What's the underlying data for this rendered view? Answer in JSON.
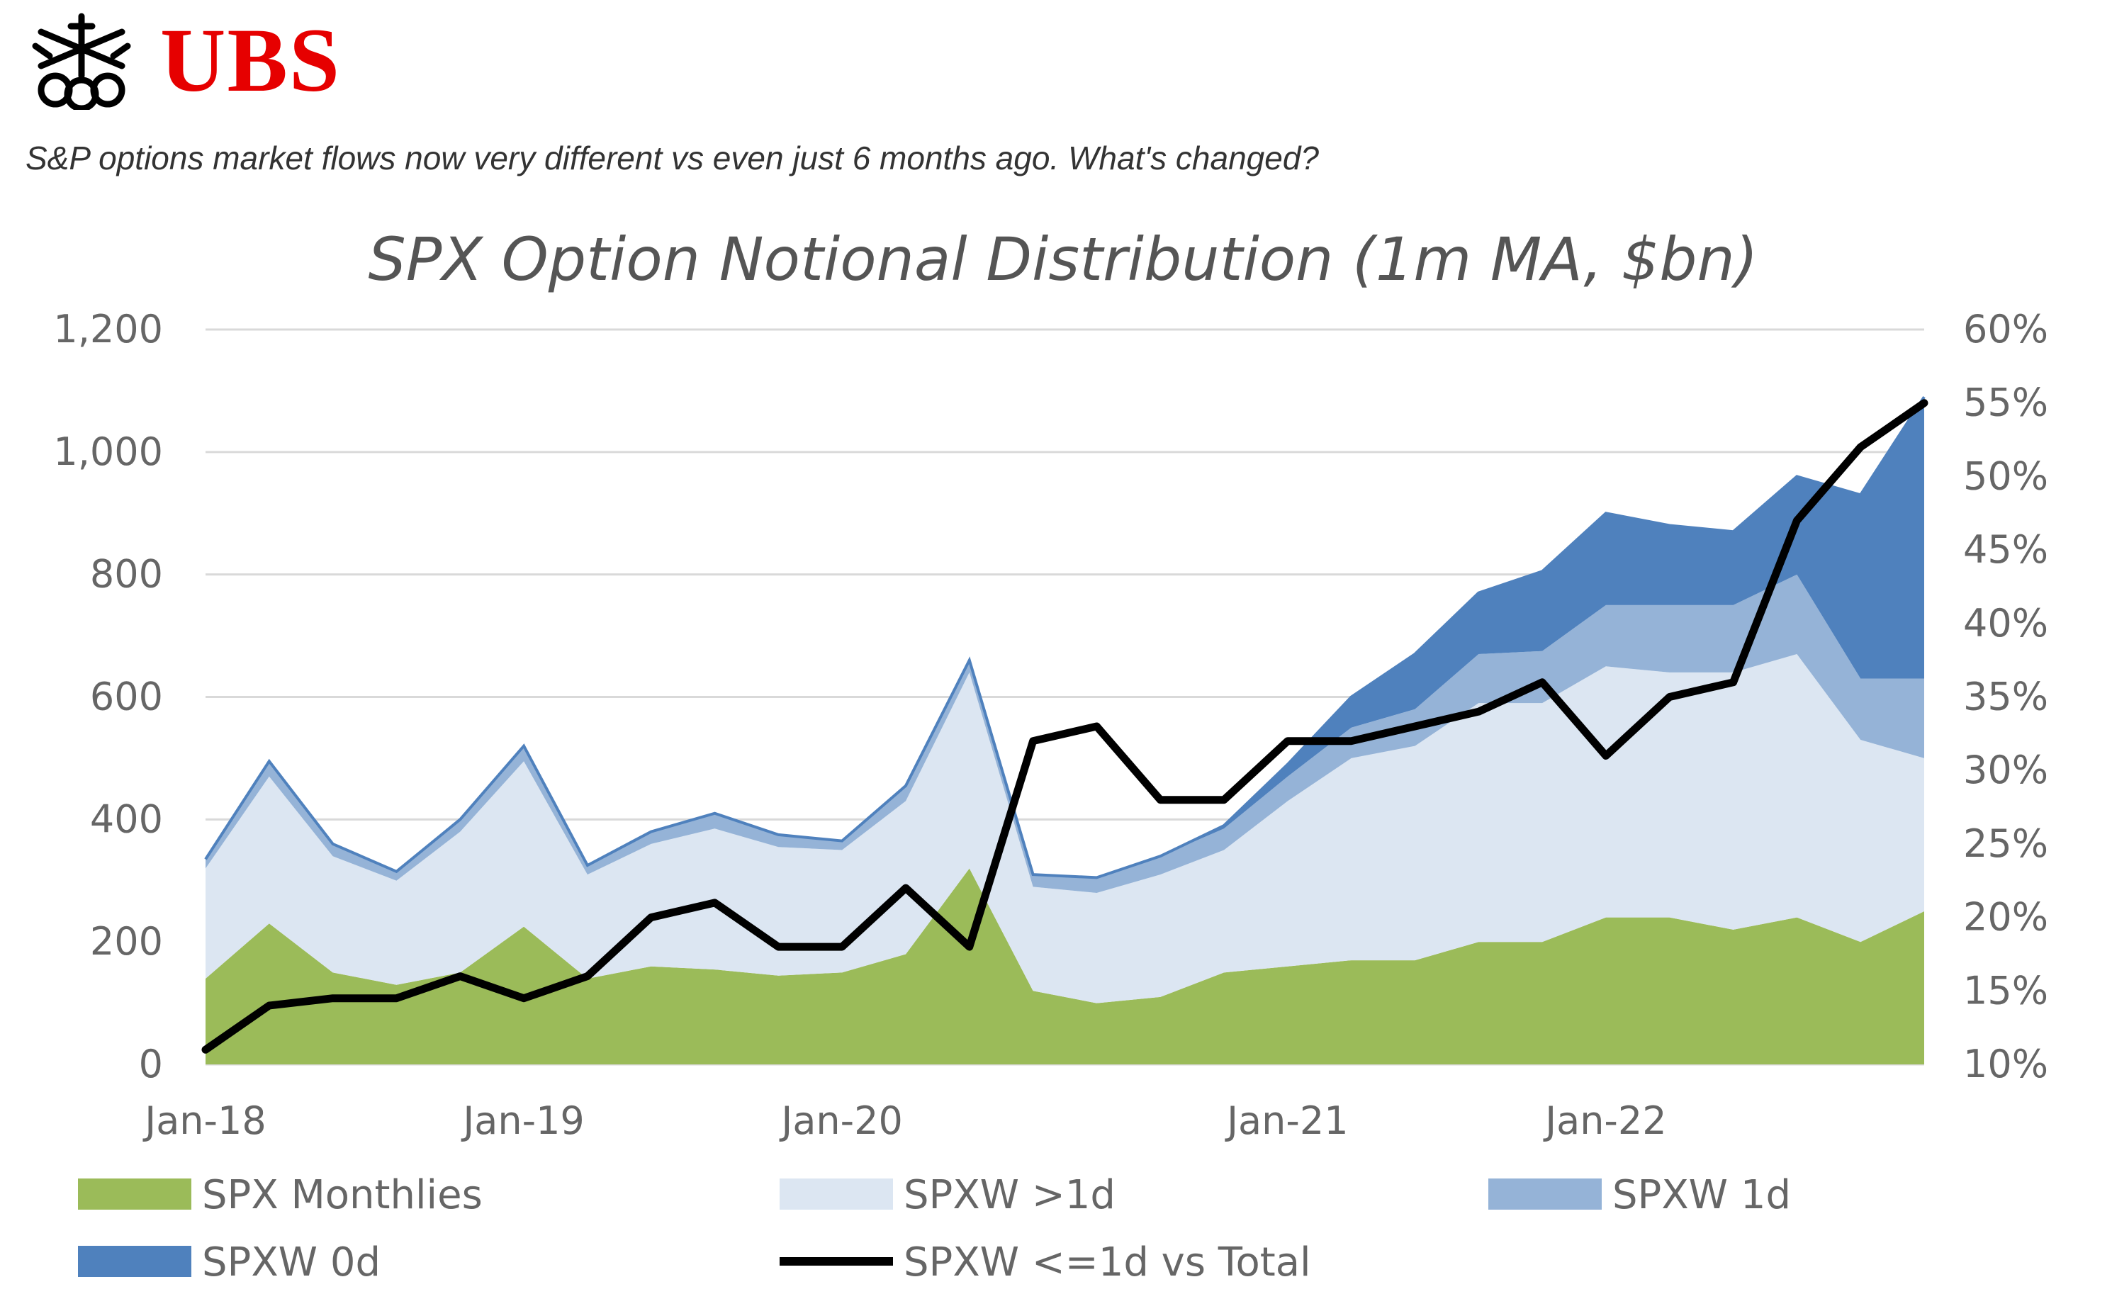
{
  "brand": {
    "name": "UBS",
    "icon": "ubs-keys-logo",
    "color": "#e60000"
  },
  "subtitle": "S&P options market flows now very different vs even just 6 months ago. What's changed?",
  "chart_data": {
    "type": "area",
    "title": "SPX Option Notional Distribution (1m MA, $bn)",
    "xlabel": "",
    "ylabel": "",
    "x_ticks": [
      "Jan-18",
      "Jan-19",
      "Jan-20",
      "Jan-21",
      "Jan-22"
    ],
    "y_left": {
      "ticks": [
        "0",
        "200",
        "400",
        "600",
        "800",
        "1,000",
        "1,200"
      ],
      "range": [
        0,
        1200
      ]
    },
    "y_right": {
      "ticks": [
        "10%",
        "15%",
        "20%",
        "25%",
        "30%",
        "35%",
        "40%",
        "45%",
        "50%",
        "55%",
        "60%"
      ],
      "range": [
        10,
        60
      ]
    },
    "grid": "horizontal",
    "legend": "bottom",
    "x": [
      "Jan-18",
      "Mar-18",
      "Jun-18",
      "Sep-18",
      "Nov-18",
      "Jan-19",
      "Mar-19",
      "Jun-19",
      "Sep-19",
      "Nov-19",
      "Jan-20",
      "Feb-20",
      "Mar-20",
      "Apr-20",
      "Jun-20",
      "Aug-20",
      "Oct-20",
      "Jan-21",
      "Apr-21",
      "Jul-21",
      "Sep-21",
      "Oct-21",
      "Jan-22",
      "Apr-22",
      "Jun-22",
      "Aug-22",
      "Oct-22",
      "Nov-22"
    ],
    "series": [
      {
        "name": "SPX Monthlies",
        "kind": "area",
        "axis": "left",
        "color": "#9bbb59",
        "values": [
          140,
          230,
          150,
          130,
          150,
          225,
          140,
          160,
          155,
          145,
          150,
          180,
          320,
          120,
          100,
          110,
          150,
          160,
          170,
          170,
          200,
          200,
          240,
          240,
          220,
          240,
          200,
          250
        ]
      },
      {
        "name": "SPXW >1d",
        "kind": "area",
        "axis": "left",
        "color": "#dce6f2",
        "values": [
          180,
          240,
          190,
          170,
          230,
          270,
          170,
          200,
          230,
          210,
          200,
          250,
          320,
          170,
          180,
          200,
          200,
          270,
          330,
          350,
          390,
          390,
          410,
          400,
          420,
          430,
          330,
          250
        ]
      },
      {
        "name": "SPXW 1d",
        "kind": "area",
        "axis": "left",
        "color": "#95b3d7",
        "values": [
          15,
          25,
          20,
          15,
          20,
          25,
          15,
          20,
          25,
          20,
          15,
          25,
          20,
          20,
          25,
          30,
          35,
          40,
          50,
          60,
          80,
          85,
          100,
          110,
          110,
          130,
          100,
          130
        ]
      },
      {
        "name": "SPXW 0d",
        "kind": "area",
        "axis": "left",
        "color": "#4f81bd",
        "values": [
          0,
          0,
          0,
          0,
          0,
          0,
          0,
          0,
          0,
          0,
          0,
          0,
          0,
          0,
          0,
          0,
          5,
          20,
          50,
          90,
          100,
          130,
          150,
          130,
          120,
          160,
          300,
          460
        ]
      },
      {
        "name": "SPXW <=1d vs Total",
        "kind": "line",
        "axis": "right",
        "color": "#000000",
        "values": [
          11,
          14,
          14.5,
          14.5,
          16,
          14.5,
          16,
          20,
          21,
          18,
          18,
          22,
          18,
          32,
          33,
          28,
          28,
          32,
          32,
          33,
          34,
          36,
          31,
          35,
          36,
          47,
          52,
          55
        ]
      }
    ]
  }
}
